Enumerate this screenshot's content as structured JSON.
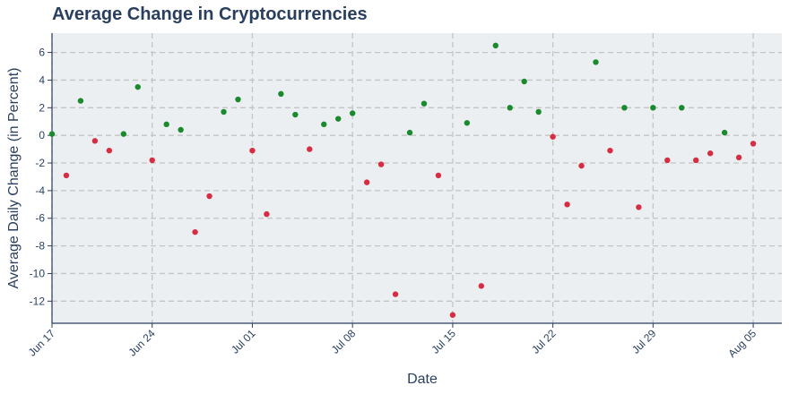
{
  "chart_data": {
    "type": "scatter",
    "title": "Average Change in Cryptocurrencies",
    "xlabel": "Date",
    "ylabel": "Average Daily Change (in Percent)",
    "x_axis": {
      "type": "date",
      "range": [
        "2024-06-17",
        "2024-08-07"
      ],
      "ticks": [
        "2024-06-17",
        "2024-06-24",
        "2024-07-01",
        "2024-07-08",
        "2024-07-15",
        "2024-07-22",
        "2024-07-29",
        "2024-08-05"
      ],
      "tick_labels": [
        "Jun 17",
        "Jun 24",
        "Jul 01",
        "Jul 08",
        "Jul 15",
        "Jul 22",
        "Jul 29",
        "Aug 05"
      ]
    },
    "y_axis": {
      "range": [
        -13.6,
        7.4
      ],
      "ticks": [
        6,
        4,
        2,
        0,
        -2,
        -4,
        -6,
        -8,
        -10,
        -12
      ],
      "tick_labels": [
        "6",
        "4",
        "2",
        "0",
        "-2",
        "-4",
        "-6",
        "-8",
        "-10",
        "-12"
      ]
    },
    "grid": true,
    "colors": {
      "positive": "#1a8a2e",
      "negative": "#d62d43",
      "plot_bg": "#eceff1",
      "axis": "#2a3f5f",
      "grid": "#c4c4c4"
    },
    "points": [
      {
        "x": "2024-06-17",
        "y": 0.1
      },
      {
        "x": "2024-06-18",
        "y": -2.9
      },
      {
        "x": "2024-06-19",
        "y": 2.5
      },
      {
        "x": "2024-06-20",
        "y": -0.4
      },
      {
        "x": "2024-06-21",
        "y": -1.1
      },
      {
        "x": "2024-06-22",
        "y": 0.1
      },
      {
        "x": "2024-06-23",
        "y": 3.5
      },
      {
        "x": "2024-06-24",
        "y": -1.8
      },
      {
        "x": "2024-06-25",
        "y": 0.8
      },
      {
        "x": "2024-06-26",
        "y": 0.4
      },
      {
        "x": "2024-06-27",
        "y": -7.0
      },
      {
        "x": "2024-06-28",
        "y": -4.4
      },
      {
        "x": "2024-06-29",
        "y": 1.7
      },
      {
        "x": "2024-06-30",
        "y": 2.6
      },
      {
        "x": "2024-07-01",
        "y": -1.1
      },
      {
        "x": "2024-07-02",
        "y": -5.7
      },
      {
        "x": "2024-07-03",
        "y": 3.0
      },
      {
        "x": "2024-07-04",
        "y": 1.5
      },
      {
        "x": "2024-07-05",
        "y": -1.0
      },
      {
        "x": "2024-07-06",
        "y": 0.8
      },
      {
        "x": "2024-07-07",
        "y": 1.2
      },
      {
        "x": "2024-07-08",
        "y": 1.6
      },
      {
        "x": "2024-07-09",
        "y": -3.4
      },
      {
        "x": "2024-07-10",
        "y": -2.1
      },
      {
        "x": "2024-07-11",
        "y": -11.5
      },
      {
        "x": "2024-07-12",
        "y": 0.2
      },
      {
        "x": "2024-07-13",
        "y": 2.3
      },
      {
        "x": "2024-07-14",
        "y": -2.9
      },
      {
        "x": "2024-07-15",
        "y": -13.0
      },
      {
        "x": "2024-07-16",
        "y": 0.9
      },
      {
        "x": "2024-07-17",
        "y": -10.9
      },
      {
        "x": "2024-07-18",
        "y": 6.5
      },
      {
        "x": "2024-07-19",
        "y": 2.0
      },
      {
        "x": "2024-07-20",
        "y": 3.9
      },
      {
        "x": "2024-07-21",
        "y": 1.7
      },
      {
        "x": "2024-07-22",
        "y": -0.1
      },
      {
        "x": "2024-07-23",
        "y": -5.0
      },
      {
        "x": "2024-07-24",
        "y": -2.2
      },
      {
        "x": "2024-07-25",
        "y": 5.3
      },
      {
        "x": "2024-07-26",
        "y": -1.1
      },
      {
        "x": "2024-07-27",
        "y": 2.0
      },
      {
        "x": "2024-07-28",
        "y": -5.2
      },
      {
        "x": "2024-07-29",
        "y": 2.0
      },
      {
        "x": "2024-07-30",
        "y": -1.8
      },
      {
        "x": "2024-07-31",
        "y": 2.0
      },
      {
        "x": "2024-08-01",
        "y": -1.8
      },
      {
        "x": "2024-08-02",
        "y": -1.3
      },
      {
        "x": "2024-08-03",
        "y": 0.2
      },
      {
        "x": "2024-08-04",
        "y": -1.6
      },
      {
        "x": "2024-08-05",
        "y": -0.6
      }
    ]
  }
}
